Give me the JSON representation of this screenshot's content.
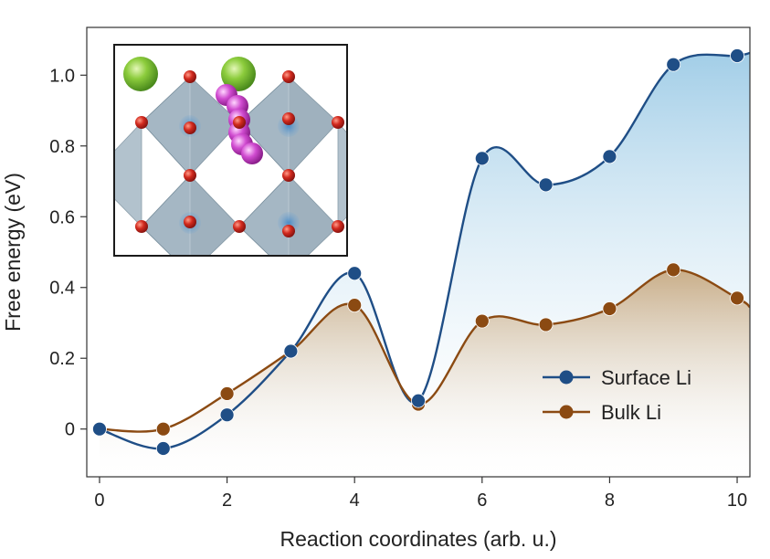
{
  "chart_data": {
    "type": "line",
    "title": "",
    "xlabel": "Reaction coordinates (arb. u.)",
    "ylabel": "Free energy (eV)",
    "xlim": [
      -0.2,
      10.2
    ],
    "ylim": [
      -0.135,
      1.135
    ],
    "xticks": [
      0,
      2,
      4,
      6,
      8,
      10
    ],
    "yticks": [
      0,
      0.2,
      0.4,
      0.6,
      0.8,
      1.0
    ],
    "ytick_labels": [
      "0",
      "0.2",
      "0.4",
      "0.6",
      "0.8",
      "1.0"
    ],
    "x": [
      0,
      1,
      2,
      3,
      4,
      5,
      6,
      7,
      8,
      9,
      10
    ],
    "series": [
      {
        "name": "Surface Li",
        "color": "#1f4e86",
        "fill_color": "#9dcbe6",
        "values": [
          0.0,
          -0.055,
          0.04,
          0.22,
          0.44,
          0.08,
          0.765,
          0.69,
          0.77,
          1.03,
          1.055
        ]
      },
      {
        "name": "Bulk Li",
        "color": "#8b4a12",
        "fill_color": "#c6a67c",
        "values": [
          0.0,
          0.0,
          0.1,
          0.22,
          0.35,
          0.07,
          0.305,
          0.295,
          0.34,
          0.45,
          0.37
        ]
      }
    ],
    "legend": {
      "position": "bottom-right"
    },
    "grid": false,
    "inset": {
      "description_icon": "crystal-structure-inset",
      "green_atom_color": "#7ec232",
      "red_atom_color": "#d0281d",
      "magenta_atom_color": "#cc3bcc",
      "octahedron_color": "#8fa4b3"
    }
  }
}
